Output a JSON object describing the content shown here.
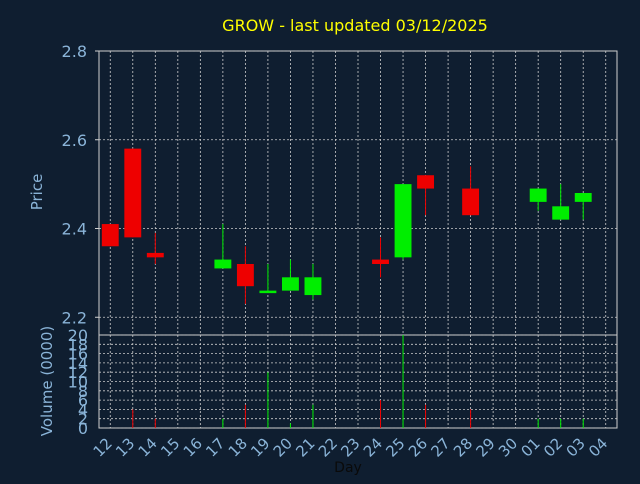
{
  "chart_data": {
    "type": "candlestick",
    "title": "GROW - last updated 03/12/2025",
    "xlabel": "Day",
    "price_panel": {
      "ylabel": "Price",
      "ylim": [
        2.16,
        2.8
      ],
      "y_ticks": [
        "2.2",
        "2.4",
        "2.6",
        "2.8"
      ]
    },
    "volume_panel": {
      "ylabel": "Volume (0000)",
      "ylim": [
        0,
        20
      ],
      "y_ticks": [
        "0",
        "2",
        "4",
        "6",
        "8",
        "10",
        "12",
        "14",
        "16",
        "18",
        "20"
      ]
    },
    "x_tick_labels": [
      "12",
      "13",
      "14",
      "15",
      "16",
      "17",
      "18",
      "19",
      "20",
      "21",
      "22",
      "23",
      "24",
      "25",
      "26",
      "27",
      "28",
      "29",
      "30",
      "01",
      "02",
      "03",
      "04"
    ],
    "grid": true,
    "colors": {
      "background": "#0f1e30",
      "up": "#00ee00",
      "down": "#ee0000",
      "axis_text": "#8ab4d8",
      "title": "#ffff00",
      "grid": "#cccccc",
      "xlabel": "#0a0a0a"
    },
    "candles": [
      {
        "x": "12",
        "open": 2.41,
        "high": 2.41,
        "low": 2.36,
        "close": 2.36,
        "volume": 0
      },
      {
        "x": "13",
        "open": 2.58,
        "high": 2.58,
        "low": 2.38,
        "close": 2.38,
        "volume": 4
      },
      {
        "x": "14",
        "open": 2.345,
        "high": 2.39,
        "low": 2.32,
        "close": 2.335,
        "volume": 2
      },
      {
        "x": "17",
        "open": 2.31,
        "high": 2.41,
        "low": 2.31,
        "close": 2.33,
        "volume": 2
      },
      {
        "x": "18",
        "open": 2.32,
        "high": 2.36,
        "low": 2.23,
        "close": 2.27,
        "volume": 5
      },
      {
        "x": "19",
        "open": 2.255,
        "high": 2.32,
        "low": 2.255,
        "close": 2.26,
        "volume": 12
      },
      {
        "x": "20",
        "open": 2.26,
        "high": 2.33,
        "low": 2.26,
        "close": 2.29,
        "volume": 1
      },
      {
        "x": "21",
        "open": 2.25,
        "high": 2.32,
        "low": 2.24,
        "close": 2.29,
        "volume": 5
      },
      {
        "x": "24",
        "open": 2.33,
        "high": 2.38,
        "low": 2.29,
        "close": 2.32,
        "volume": 6
      },
      {
        "x": "25",
        "open": 2.335,
        "high": 2.5,
        "low": 2.33,
        "close": 2.5,
        "volume": 20
      },
      {
        "x": "26",
        "open": 2.52,
        "high": 2.52,
        "low": 2.43,
        "close": 2.49,
        "volume": 5
      },
      {
        "x": "28",
        "open": 2.49,
        "high": 2.54,
        "low": 2.43,
        "close": 2.43,
        "volume": 4
      },
      {
        "x": "01",
        "open": 2.46,
        "high": 2.49,
        "low": 2.44,
        "close": 2.49,
        "volume": 2
      },
      {
        "x": "02",
        "open": 2.42,
        "high": 2.5,
        "low": 2.42,
        "close": 2.45,
        "volume": 2
      },
      {
        "x": "03",
        "open": 2.46,
        "high": 2.48,
        "low": 2.42,
        "close": 2.48,
        "volume": 2
      }
    ]
  }
}
